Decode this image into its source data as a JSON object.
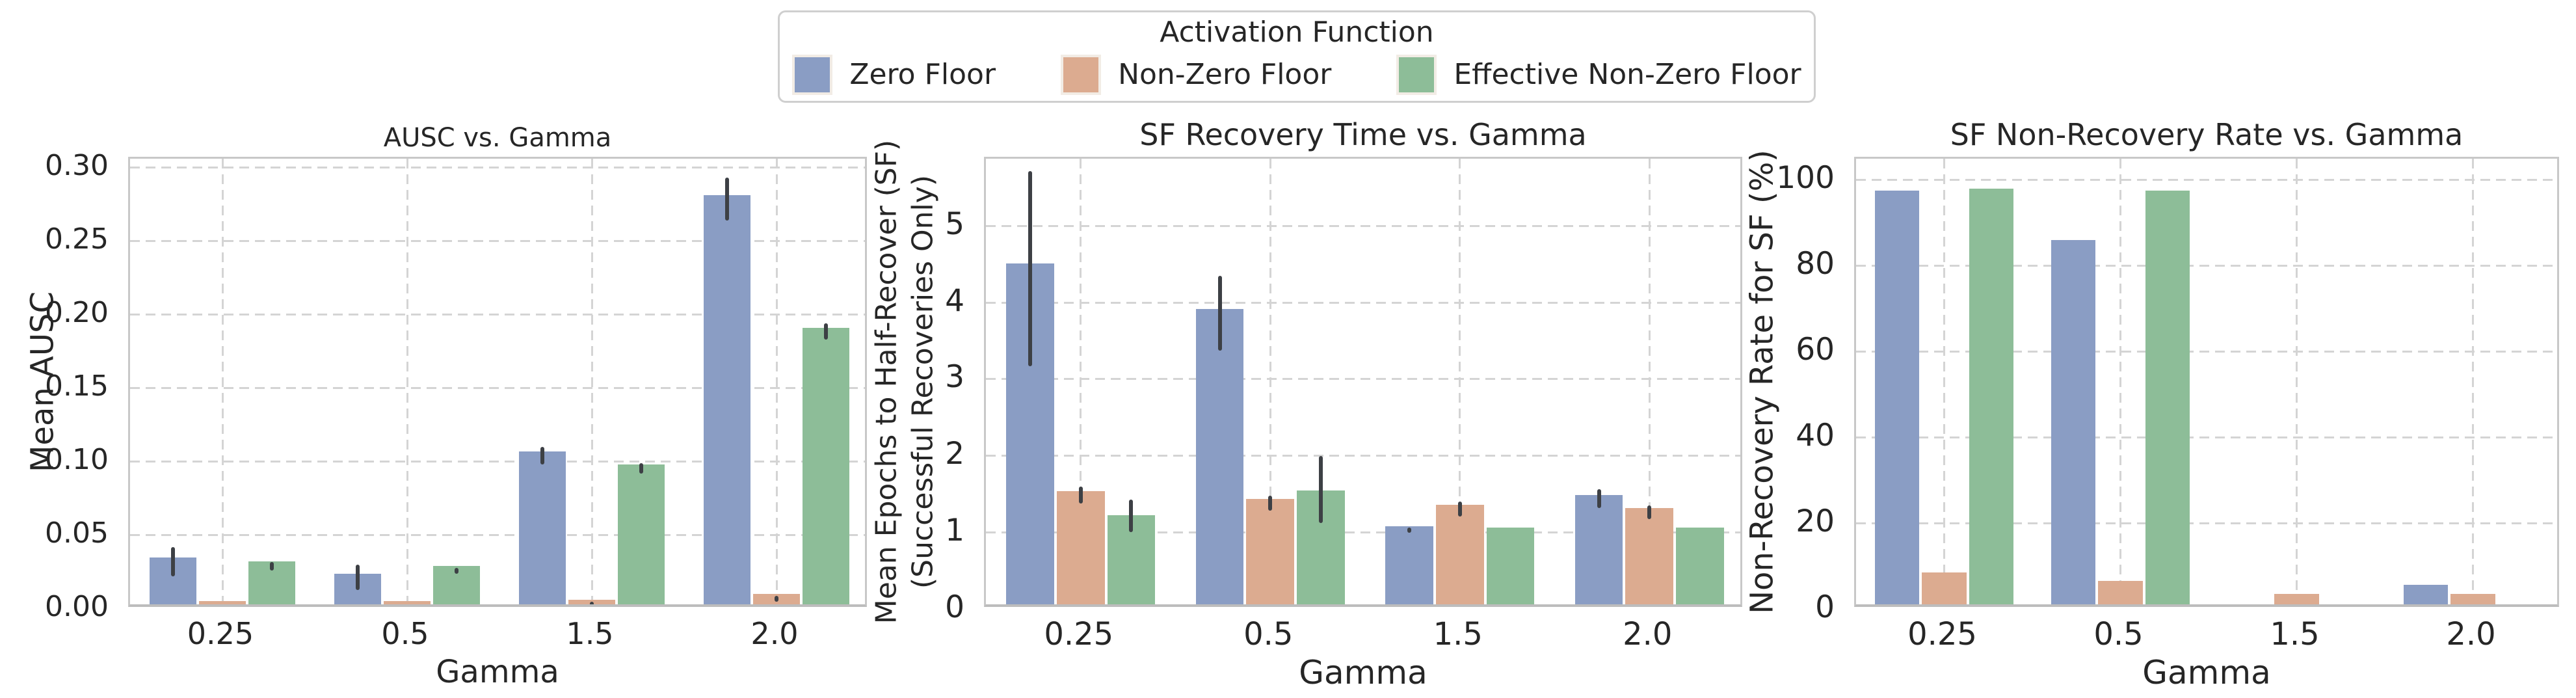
{
  "figure": {
    "background": "#ffffff"
  },
  "legend": {
    "title": "Activation Function",
    "items": [
      {
        "label": "Zero Floor",
        "color": "#8a9dc4"
      },
      {
        "label": "Non-Zero Floor",
        "color": "#dcab90"
      },
      {
        "label": "Effective Non-Zero Floor",
        "color": "#8dbd98"
      }
    ]
  },
  "colors": {
    "error_bar": "#3d4045",
    "grid": "#d4d4d4",
    "axes_border": "#c8c8c8",
    "text": "#262626"
  },
  "chart_data": [
    {
      "type": "bar",
      "title": "AUSC vs. Gamma",
      "xlabel": "Gamma",
      "ylabel": "Mean AUSC",
      "categories": [
        "0.25",
        "0.5",
        "1.5",
        "2.0"
      ],
      "ylim": [
        0,
        0.306
      ],
      "grid": true,
      "yticks": [
        {
          "v": 0.0,
          "label": "0.00"
        },
        {
          "v": 0.05,
          "label": "0.05"
        },
        {
          "v": 0.1,
          "label": "0.10"
        },
        {
          "v": 0.15,
          "label": "0.15"
        },
        {
          "v": 0.2,
          "label": "0.20"
        },
        {
          "v": 0.25,
          "label": "0.25"
        },
        {
          "v": 0.3,
          "label": "0.30"
        }
      ],
      "series": [
        {
          "name": "Zero Floor",
          "color": "#8a9dc4",
          "values": [
            0.032,
            0.021,
            0.104,
            0.278
          ],
          "errors": [
            [
              0.022,
              0.042
            ],
            [
              0.013,
              0.03
            ],
            [
              0.098,
              0.11
            ],
            [
              0.264,
              0.293
            ]
          ]
        },
        {
          "name": "Non-Zero Floor",
          "color": "#dcab90",
          "values": [
            0.002,
            0.002,
            0.003,
            0.007
          ],
          "errors": [
            [
              0.001,
              0.003
            ],
            [
              0.001,
              0.003
            ],
            [
              0.002,
              0.005
            ],
            [
              0.005,
              0.009
            ]
          ]
        },
        {
          "name": "Effective Non-Zero Floor",
          "color": "#8dbd98",
          "values": [
            0.029,
            0.026,
            0.095,
            0.188
          ],
          "errors": [
            [
              0.026,
              0.032
            ],
            [
              0.024,
              0.028
            ],
            [
              0.092,
              0.099
            ],
            [
              0.183,
              0.194
            ]
          ]
        }
      ]
    },
    {
      "type": "bar",
      "title": "SF Recovery Time vs. Gamma",
      "xlabel": "Gamma",
      "ylabel": "Mean Epochs to Half-Recover (SF)\n(Successful Recoveries Only)",
      "categories": [
        "0.25",
        "0.5",
        "1.5",
        "2.0"
      ],
      "ylim": [
        0,
        5.88
      ],
      "grid": true,
      "yticks": [
        {
          "v": 0,
          "label": "0"
        },
        {
          "v": 1,
          "label": "1"
        },
        {
          "v": 2,
          "label": "2"
        },
        {
          "v": 3,
          "label": "3"
        },
        {
          "v": 4,
          "label": "4"
        },
        {
          "v": 5,
          "label": "5"
        }
      ],
      "series": [
        {
          "name": "Zero Floor",
          "color": "#8a9dc4",
          "values": [
            4.45,
            3.86,
            1.02,
            1.43
          ],
          "errors": [
            [
              3.17,
              5.72
            ],
            [
              3.37,
              4.35
            ],
            [
              0.99,
              1.06
            ],
            [
              1.32,
              1.56
            ]
          ]
        },
        {
          "name": "Non-Zero Floor",
          "color": "#dcab90",
          "values": [
            1.48,
            1.38,
            1.3,
            1.26
          ],
          "errors": [
            [
              1.38,
              1.6
            ],
            [
              1.28,
              1.48
            ],
            [
              1.21,
              1.4
            ],
            [
              1.17,
              1.35
            ]
          ]
        },
        {
          "name": "Effective Non-Zero Floor",
          "color": "#8dbd98",
          "values": [
            1.16,
            1.49,
            1.0,
            1.0
          ],
          "errors": [
            [
              1.0,
              1.43
            ],
            [
              1.12,
              2.0
            ],
            null,
            null
          ]
        }
      ]
    },
    {
      "type": "bar",
      "title": "SF Non-Recovery Rate vs. Gamma",
      "xlabel": "Gamma",
      "ylabel": "Non-Recovery Rate for SF (%)",
      "categories": [
        "0.25",
        "0.5",
        "1.5",
        "2.0"
      ],
      "ylim": [
        0,
        105
      ],
      "grid": true,
      "yticks": [
        {
          "v": 0,
          "label": "0"
        },
        {
          "v": 20,
          "label": "20"
        },
        {
          "v": 40,
          "label": "40"
        },
        {
          "v": 60,
          "label": "60"
        },
        {
          "v": 80,
          "label": "80"
        },
        {
          "v": 100,
          "label": "100"
        }
      ],
      "series": [
        {
          "name": "Zero Floor",
          "color": "#8a9dc4",
          "values": [
            96.5,
            85.0,
            0,
            4.5
          ],
          "errors": [
            null,
            null,
            null,
            null
          ]
        },
        {
          "name": "Non-Zero Floor",
          "color": "#dcab90",
          "values": [
            7.5,
            5.5,
            2.5,
            2.5
          ],
          "errors": [
            null,
            null,
            null,
            null
          ]
        },
        {
          "name": "Effective Non-Zero Floor",
          "color": "#8dbd98",
          "values": [
            97.0,
            96.5,
            0,
            0
          ],
          "errors": [
            null,
            null,
            null,
            null
          ]
        }
      ]
    }
  ]
}
